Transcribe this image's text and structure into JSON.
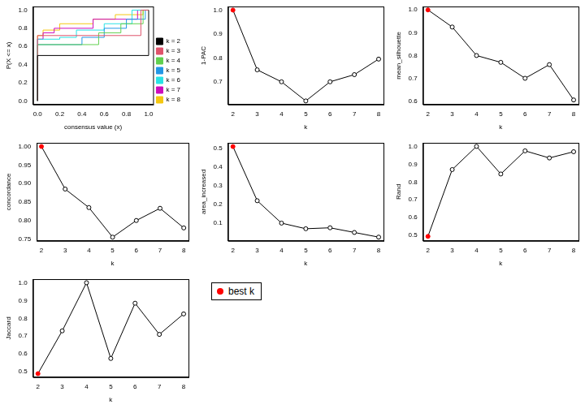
{
  "chart_data": [
    {
      "type": "line",
      "line_style": "step",
      "x_label": "consensus value (x)",
      "y_label": "P(X <= x)",
      "xlim": [
        -0.04,
        1.04
      ],
      "xticks": [
        {
          "value": 0,
          "label": "0.0"
        },
        {
          "value": 0.2,
          "label": "0.2"
        },
        {
          "value": 0.4,
          "label": "0.4"
        },
        {
          "value": 0.6,
          "label": "0.6"
        },
        {
          "value": 0.8,
          "label": "0.8"
        },
        {
          "value": 1,
          "label": "1.0"
        }
      ],
      "ylim": [
        -0.04,
        1.04
      ],
      "yticks": [
        {
          "value": 0,
          "label": "0.0"
        },
        {
          "value": 0.2,
          "label": "0.2"
        },
        {
          "value": 0.4,
          "label": "0.4"
        },
        {
          "value": 0.6,
          "label": "0.6"
        },
        {
          "value": 0.8,
          "label": "0.8"
        },
        {
          "value": 1,
          "label": "1.0"
        }
      ],
      "grid": false,
      "legend": "right",
      "series": [
        {
          "name": "k = 2",
          "color": "#000000",
          "x": [
            0,
            0,
            1,
            1
          ],
          "values": [
            0,
            0.5,
            0.5,
            1
          ]
        },
        {
          "name": "k = 3",
          "color": "#DF536B",
          "x": [
            0,
            0,
            0.93,
            1
          ],
          "values": [
            0,
            0.6,
            0.72,
            1
          ]
        },
        {
          "name": "k = 4",
          "color": "#61D04F",
          "x": [
            0,
            0,
            0.55,
            0.75,
            0.95,
            1
          ],
          "values": [
            0,
            0.5,
            0.62,
            0.75,
            0.85,
            1
          ]
        },
        {
          "name": "k = 5",
          "color": "#2297E6",
          "x": [
            0,
            0,
            0.4,
            0.6,
            0.8,
            0.97,
            1
          ],
          "values": [
            0,
            0.5,
            0.62,
            0.7,
            0.8,
            0.9,
            1
          ]
        },
        {
          "name": "k = 6",
          "color": "#28E2E5",
          "x": [
            0,
            0,
            0.2,
            0.35,
            0.6,
            0.85,
            1
          ],
          "values": [
            0,
            0.6,
            0.68,
            0.7,
            0.78,
            0.85,
            1
          ]
        },
        {
          "name": "k = 7",
          "color": "#CD0BBC",
          "x": [
            0,
            0,
            0.05,
            0.15,
            0.5,
            0.9,
            1
          ],
          "values": [
            0,
            0.6,
            0.68,
            0.75,
            0.8,
            0.9,
            1
          ]
        },
        {
          "name": "k = 8",
          "color": "#F5C710",
          "x": [
            0,
            0,
            0.05,
            0.2,
            0.5,
            0.7,
            0.95,
            1
          ],
          "values": [
            0,
            0.65,
            0.72,
            0.78,
            0.85,
            0.9,
            0.95,
            1
          ]
        }
      ]
    },
    {
      "type": "line",
      "x_label": "k",
      "y_label": "1-PAC",
      "x": [
        2,
        3,
        4,
        5,
        6,
        7,
        8
      ],
      "xlim": [
        1.8,
        8.2
      ],
      "xticks": [
        2,
        3,
        4,
        5,
        6,
        7,
        8
      ],
      "ylim": [
        0.605,
        1.015
      ],
      "yticks": [
        0.7,
        0.8,
        0.9,
        {
          "value": 1,
          "label": "1.0"
        }
      ],
      "grid": false,
      "series": [
        {
          "color": "#000000",
          "marker": "circle",
          "values": [
            1.0,
            0.75,
            0.7,
            0.62,
            0.7,
            0.73,
            0.795
          ],
          "colors": [
            "#ff0000",
            "#000000",
            "#000000",
            "#000000",
            "#000000",
            "#000000",
            "#000000"
          ]
        }
      ]
    },
    {
      "type": "line",
      "x_label": "k",
      "y_label": "mean_silhouette",
      "x": [
        2,
        3,
        4,
        5,
        6,
        7,
        8
      ],
      "xlim": [
        1.8,
        8.2
      ],
      "xticks": [
        2,
        3,
        4,
        5,
        6,
        7,
        8
      ],
      "ylim": [
        0.585,
        1.015
      ],
      "yticks": [
        0.6,
        0.7,
        0.8,
        0.9,
        {
          "value": 1,
          "label": "1.0"
        }
      ],
      "grid": false,
      "series": [
        {
          "color": "#000000",
          "marker": "circle",
          "values": [
            1.0,
            0.925,
            0.8,
            0.77,
            0.7,
            0.76,
            0.605
          ],
          "colors": [
            "#ff0000",
            "#000000",
            "#000000",
            "#000000",
            "#000000",
            "#000000",
            "#000000"
          ]
        }
      ]
    },
    {
      "type": "line",
      "x_label": "k",
      "y_label": "concordance",
      "x": [
        2,
        3,
        4,
        5,
        6,
        7,
        8
      ],
      "xlim": [
        1.8,
        8.2
      ],
      "xticks": [
        2,
        3,
        4,
        5,
        6,
        7,
        8
      ],
      "ylim": [
        0.745,
        1.01
      ],
      "yticks": [
        0.75,
        {
          "value": 0.8,
          "label": "0.80"
        },
        0.85,
        {
          "value": 0.9,
          "label": "0.90"
        },
        0.95,
        {
          "value": 1,
          "label": "1.00"
        }
      ],
      "grid": false,
      "series": [
        {
          "color": "#000000",
          "marker": "circle",
          "values": [
            1.0,
            0.885,
            0.835,
            0.755,
            0.8,
            0.833,
            0.78
          ],
          "colors": [
            "#ff0000",
            "#000000",
            "#000000",
            "#000000",
            "#000000",
            "#000000",
            "#000000"
          ]
        }
      ]
    },
    {
      "type": "line",
      "x_label": "k",
      "y_label": "area_increased",
      "x": [
        2,
        3,
        4,
        5,
        6,
        7,
        8
      ],
      "xlim": [
        1.8,
        8.2
      ],
      "xticks": [
        2,
        3,
        4,
        5,
        6,
        7,
        8
      ],
      "ylim": [
        0.005,
        0.53
      ],
      "yticks": [
        0.1,
        0.2,
        0.3,
        0.4,
        0.5
      ],
      "grid": false,
      "series": [
        {
          "color": "#000000",
          "marker": "circle",
          "values": [
            0.51,
            0.22,
            0.1,
            0.07,
            0.075,
            0.05,
            0.025
          ],
          "colors": [
            "#ff0000",
            "#000000",
            "#000000",
            "#000000",
            "#000000",
            "#000000",
            "#000000"
          ]
        }
      ]
    },
    {
      "type": "line",
      "x_label": "k",
      "y_label": "Rand",
      "x": [
        2,
        3,
        4,
        5,
        6,
        7,
        8
      ],
      "xlim": [
        1.8,
        8.2
      ],
      "xticks": [
        2,
        3,
        4,
        5,
        6,
        7,
        8
      ],
      "ylim": [
        0.47,
        1.02
      ],
      "yticks": [
        0.5,
        0.6,
        0.7,
        0.8,
        0.9,
        {
          "value": 1,
          "label": "1.0"
        }
      ],
      "grid": false,
      "series": [
        {
          "color": "#000000",
          "marker": "circle",
          "values": [
            0.495,
            0.87,
            1.0,
            0.845,
            0.975,
            0.935,
            0.97
          ],
          "colors": [
            "#ff0000",
            "#000000",
            "#000000",
            "#000000",
            "#000000",
            "#000000",
            "#000000"
          ]
        }
      ]
    },
    {
      "type": "line",
      "x_label": "k",
      "y_label": "Jaccard",
      "x": [
        2,
        3,
        4,
        5,
        6,
        7,
        8
      ],
      "xlim": [
        1.8,
        8.2
      ],
      "xticks": [
        2,
        3,
        4,
        5,
        6,
        7,
        8
      ],
      "ylim": [
        0.47,
        1.02
      ],
      "yticks": [
        0.5,
        0.6,
        0.7,
        0.8,
        0.9,
        {
          "value": 1,
          "label": "1.0"
        }
      ],
      "grid": false,
      "series": [
        {
          "color": "#000000",
          "marker": "circle",
          "values": [
            0.49,
            0.73,
            1.0,
            0.575,
            0.885,
            0.71,
            0.825
          ],
          "colors": [
            "#ff0000",
            "#000000",
            "#000000",
            "#000000",
            "#000000",
            "#000000",
            "#000000"
          ]
        }
      ]
    }
  ],
  "legend_box": {
    "text": "best k",
    "color": "#ff0000"
  }
}
